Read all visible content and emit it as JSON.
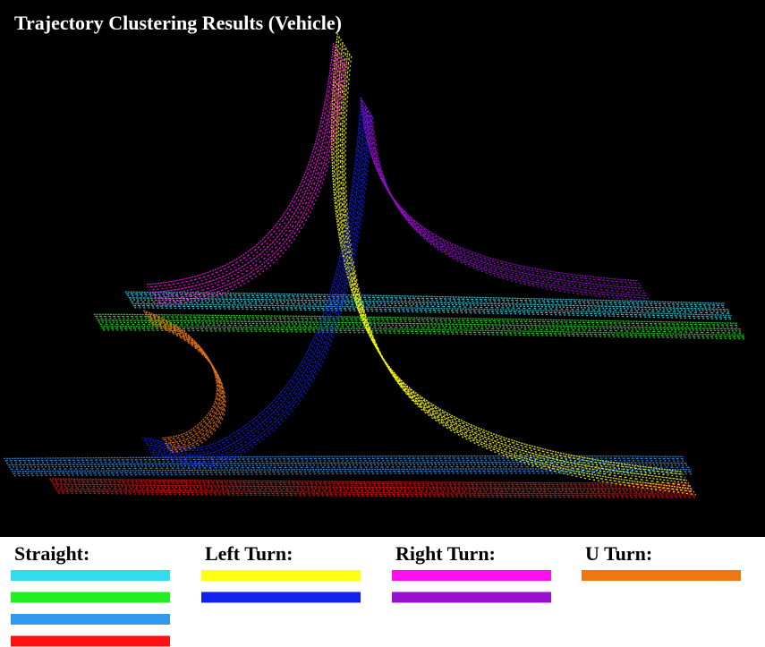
{
  "title": "Trajectory Clustering Results (Vehicle)",
  "legend": [
    {
      "label": "Straight:",
      "colors": [
        "#33ddee",
        "#22ee22",
        "#3399ee",
        "#ff1111"
      ]
    },
    {
      "label": "Left Turn:",
      "colors": [
        "#ffff11",
        "#1122ee"
      ]
    },
    {
      "label": "Right Turn:",
      "colors": [
        "#ff11ee",
        "#9911cc"
      ]
    },
    {
      "label": "U Turn:",
      "colors": [
        "#ee7711"
      ]
    }
  ]
}
